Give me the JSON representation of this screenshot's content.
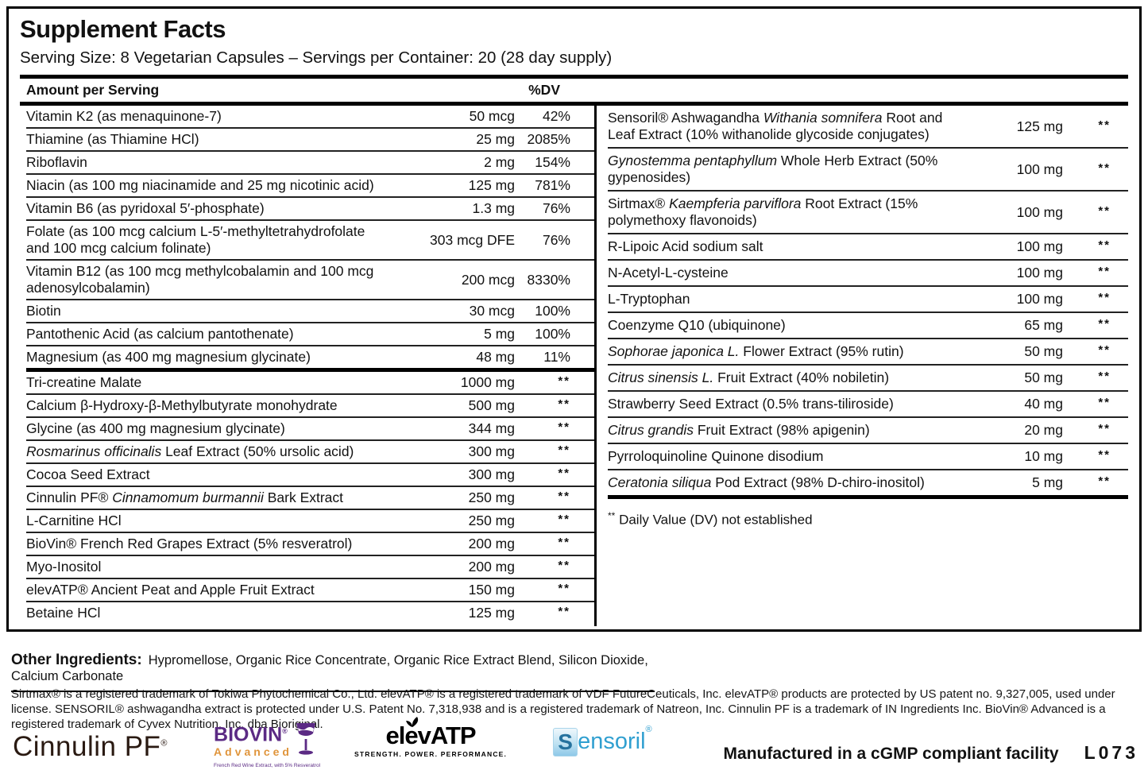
{
  "title": "Supplement Facts",
  "serving_line": "Serving Size: 8 Vegetarian Capsules  – Servings per Container: 20  (28 day supply)",
  "table": {
    "header": {
      "amount_label": "Amount per Serving",
      "dv_label": "%DV"
    },
    "left_rows": [
      {
        "parts": [
          {
            "t": "Vitamin K2 (as menaquinone-7)"
          }
        ],
        "amount": "50 mcg",
        "dv": "42%"
      },
      {
        "parts": [
          {
            "t": "Thiamine (as Thiamine HCl)"
          }
        ],
        "amount": "25 mg",
        "dv": "2085%"
      },
      {
        "parts": [
          {
            "t": "Riboflavin"
          }
        ],
        "amount": "2 mg",
        "dv": "154%"
      },
      {
        "parts": [
          {
            "t": "Niacin (as 100 mg niacinamide and 25 mg nicotinic acid)"
          }
        ],
        "amount": "125 mg",
        "dv": "781%"
      },
      {
        "parts": [
          {
            "t": "Vitamin B6 (as pyridoxal 5′-phosphate)"
          }
        ],
        "amount": "1.3 mg",
        "dv": "76%"
      },
      {
        "parts": [
          {
            "t": "Folate (as 100 mcg calcium L-5′-methyltetrahydrofolate and 100 mcg calcium folinate)"
          }
        ],
        "amount": "303 mcg DFE",
        "dv": "76%"
      },
      {
        "parts": [
          {
            "t": "Vitamin B12 (as 100 mcg methylcobalamin and 100 mcg adenosylcobalamin)"
          }
        ],
        "amount": "200 mcg",
        "dv": "8330%"
      },
      {
        "parts": [
          {
            "t": "Biotin"
          }
        ],
        "amount": "30 mcg",
        "dv": "100%"
      },
      {
        "parts": [
          {
            "t": "Pantothenic Acid (as calcium pantothenate)"
          }
        ],
        "amount": "5 mg",
        "dv": "100%"
      },
      {
        "parts": [
          {
            "t": "Magnesium (as 400 mg magnesium glycinate)"
          }
        ],
        "amount": "48 mg",
        "dv": "11%",
        "thick": true
      },
      {
        "parts": [
          {
            "t": "Tri-creatine Malate"
          }
        ],
        "amount": "1000 mg",
        "dv": "**"
      },
      {
        "parts": [
          {
            "t": "Calcium β-Hydroxy-β-Methylbutyrate monohydrate"
          }
        ],
        "amount": "500 mg",
        "dv": "**"
      },
      {
        "parts": [
          {
            "t": "Glycine (as 400 mg magnesium glycinate)"
          }
        ],
        "amount": "344 mg",
        "dv": "**"
      },
      {
        "parts": [
          {
            "t": "Rosmarinus officinalis",
            "i": true
          },
          {
            "t": " Leaf Extract (50% ursolic acid)"
          }
        ],
        "amount": "300 mg",
        "dv": "**"
      },
      {
        "parts": [
          {
            "t": "Cocoa Seed Extract"
          }
        ],
        "amount": "300 mg",
        "dv": "**"
      },
      {
        "parts": [
          {
            "t": "Cinnulin PF® "
          },
          {
            "t": "Cinnamomum burmannii",
            "i": true
          },
          {
            "t": " Bark Extract"
          }
        ],
        "amount": "250 mg",
        "dv": "**"
      },
      {
        "parts": [
          {
            "t": "L-Carnitine HCl"
          }
        ],
        "amount": "250 mg",
        "dv": "**"
      },
      {
        "parts": [
          {
            "t": "BioVin® French Red Grapes Extract (5% resveratrol)"
          }
        ],
        "amount": "200 mg",
        "dv": "**"
      },
      {
        "parts": [
          {
            "t": "Myo-Inositol"
          }
        ],
        "amount": "200 mg",
        "dv": "**"
      },
      {
        "parts": [
          {
            "t": "elevATP® Ancient Peat and Apple Fruit Extract"
          }
        ],
        "amount": "150 mg",
        "dv": "**"
      },
      {
        "parts": [
          {
            "t": "Betaine HCl"
          }
        ],
        "amount": "125 mg",
        "dv": "**",
        "last": true
      }
    ],
    "right_rows": [
      {
        "parts": [
          {
            "t": "Sensoril® Ashwagandha "
          },
          {
            "t": "Withania somnifera",
            "i": true
          },
          {
            "t": " Root and Leaf Extract  (10% withanolide glycoside conjugates)"
          }
        ],
        "amount": "125 mg",
        "dv": "**"
      },
      {
        "parts": [
          {
            "t": "Gynostemma pentaphyllum",
            "i": true
          },
          {
            "t": " Whole Herb Extract (50% gypenosides)"
          }
        ],
        "amount": "100 mg",
        "dv": "**"
      },
      {
        "parts": [
          {
            "t": "Sirtmax® "
          },
          {
            "t": "Kaempferia parviflora",
            "i": true
          },
          {
            "t": " Root Extract (15% polymethoxy flavonoids)"
          }
        ],
        "amount": "100 mg",
        "dv": "**"
      },
      {
        "parts": [
          {
            "t": "R-Lipoic Acid sodium salt"
          }
        ],
        "amount": "100 mg",
        "dv": "**"
      },
      {
        "parts": [
          {
            "t": "N-Acetyl-L-cysteine"
          }
        ],
        "amount": "100 mg",
        "dv": "**"
      },
      {
        "parts": [
          {
            "t": "L-Tryptophan"
          }
        ],
        "amount": "100 mg",
        "dv": "**"
      },
      {
        "parts": [
          {
            "t": "Coenzyme Q10 (ubiquinone)"
          }
        ],
        "amount": "65 mg",
        "dv": "**"
      },
      {
        "parts": [
          {
            "t": "Sophorae japonica L.",
            "i": true
          },
          {
            "t": " Flower Extract (95% rutin)"
          }
        ],
        "amount": "50 mg",
        "dv": "**"
      },
      {
        "parts": [
          {
            "t": "Citrus sinensis L.",
            "i": true
          },
          {
            "t": " Fruit Extract (40% nobiletin)"
          }
        ],
        "amount": "50 mg",
        "dv": "**"
      },
      {
        "parts": [
          {
            "t": "Strawberry Seed Extract (0.5% trans-tiliroside)"
          }
        ],
        "amount": "40 mg",
        "dv": "**"
      },
      {
        "parts": [
          {
            "t": "Citrus grandis",
            "i": true
          },
          {
            "t": " Fruit Extract (98% apigenin)"
          }
        ],
        "amount": "20 mg",
        "dv": "**"
      },
      {
        "parts": [
          {
            "t": "Pyrroloquinoline Quinone disodium"
          }
        ],
        "amount": "10 mg",
        "dv": "**"
      },
      {
        "parts": [
          {
            "t": "Ceratonia siliqua",
            "i": true
          },
          {
            "t": " Pod Extract (98% D-chiro-inositol)"
          }
        ],
        "amount": "5 mg",
        "dv": "**",
        "thick": true
      }
    ],
    "footnote_marker": "**",
    "footnote_text": "Daily Value (DV) not established"
  },
  "other_ingredients": {
    "label": "Other Ingredients:",
    "text": "Hypromellose, Organic Rice Concentrate, Organic Rice Extract Blend, Silicon Dioxide, Calcium Carbonate"
  },
  "trademark_text": "Sirtmax® is a registered trademark of Tokiwa Phytochemical Co., Ltd. elevATP® is a registered trademark of VDF FutureCeuticals, Inc. elevATP® products are protected by US patent no. 9,327,005, used under license. SENSORIL® ashwagandha extract is protected under U.S. Patent No. 7,318,938 and is a registered trademark of Natreon, Inc. Cinnulin PF is a trademark of IN Ingredients Inc.  BioVin® Advanced is a registered trademark of Cyvex Nutrition, Inc. dba Bioriginal.",
  "logos": {
    "cinnulin_name": "Cinnulin PF",
    "biovin_name": "BIOVIN",
    "biovin_sub": "Advanced",
    "biovin_tagline": "French Red Wine Extract, with 5% Resveratrol",
    "elevatp_name": "elevATP",
    "elevatp_tagline": "STRENGTH. POWER. PERFORMANCE.",
    "sensoril_initial": "S",
    "sensoril_rest": "ensoril",
    "sensoril_reg": "®"
  },
  "footer": {
    "manufactured": "Manufactured in a cGMP compliant facility",
    "lot_code": "L073"
  },
  "colors": {
    "biovin_purple": "#5b2a84",
    "biovin_orange": "#e0953c",
    "sensoril_blue": "#2f9fd0",
    "cinnulin_dark": "#2a1a12",
    "text_black": "#121212"
  }
}
